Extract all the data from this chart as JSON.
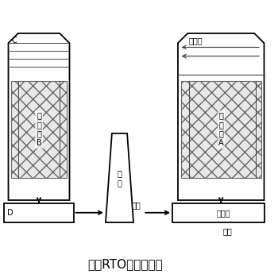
{
  "title": "二室RTO工作原理图",
  "bg_color": "#ffffff",
  "line_color": "#000000",
  "label_left_top": "C",
  "label_left_chamber": "蓄\n热\n室\nB",
  "label_right_top": "燃烧室",
  "label_right_chamber": "蓄\n热\n室\nA",
  "label_chimney": "烟\n囱",
  "label_inlet": "进气",
  "label_valve": "换向阀",
  "label_state": "状态",
  "label_D": "D",
  "title_fontsize": 11,
  "label_fontsize": 7,
  "small_fontsize": 6
}
